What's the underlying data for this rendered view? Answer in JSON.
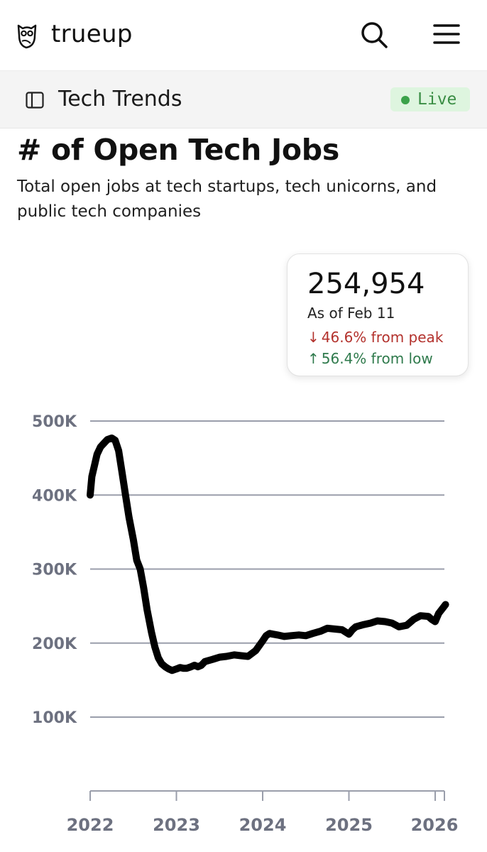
{
  "app": {
    "brand": "trueup",
    "icons": {
      "logo": "owl-logo-icon",
      "search": "search-icon",
      "menu": "hamburger-menu-icon",
      "panel": "sidebar-panel-icon"
    }
  },
  "section": {
    "title": "Tech Trends",
    "live_label": "Live",
    "live_color": "#3ba24a"
  },
  "page": {
    "title": "# of Open Tech Jobs",
    "subtitle": "Total open jobs at tech startups, tech unicorns, and public tech companies"
  },
  "stat": {
    "value": "254,954",
    "date": "As of Feb 11",
    "peak_change": "46.6% from peak",
    "low_change": "56.4% from low",
    "down_color": "#b3322d",
    "up_color": "#2f7a4c"
  },
  "chart_data": {
    "type": "line",
    "title": "",
    "xlabel": "",
    "ylabel": "",
    "ylim": [
      0,
      500000
    ],
    "xlim": [
      2022.0,
      2026.12
    ],
    "grid": true,
    "y_ticks": [
      100000,
      200000,
      300000,
      400000,
      500000
    ],
    "y_tick_labels": [
      "100K",
      "200K",
      "300K",
      "400K",
      "500K"
    ],
    "x_ticks": [
      2022,
      2023,
      2024,
      2025,
      2026
    ],
    "x_tick_labels": [
      "2022",
      "2023",
      "2024",
      "2025",
      "2026"
    ],
    "line_color": "#000000",
    "series": [
      {
        "x": [
          2022.0,
          2022.02,
          2022.05,
          2022.08,
          2022.12,
          2022.16,
          2022.2,
          2022.25,
          2022.29,
          2022.33,
          2022.37,
          2022.41,
          2022.45,
          2022.5,
          2022.54,
          2022.58,
          2022.62,
          2022.66,
          2022.71,
          2022.75,
          2022.79,
          2022.83,
          2022.87,
          2022.91,
          2022.95,
          2023.0,
          2023.04,
          2023.08,
          2023.12,
          2023.17,
          2023.21,
          2023.25,
          2023.29,
          2023.33,
          2023.42,
          2023.5,
          2023.58,
          2023.67,
          2023.75,
          2023.83,
          2023.92,
          2024.0,
          2024.04,
          2024.08,
          2024.12,
          2024.17,
          2024.25,
          2024.33,
          2024.42,
          2024.5,
          2024.58,
          2024.67,
          2024.75,
          2024.83,
          2024.92,
          2025.0,
          2025.04,
          2025.08,
          2025.17,
          2025.25,
          2025.33,
          2025.42,
          2025.5,
          2025.58,
          2025.67,
          2025.75,
          2025.83,
          2025.92,
          2025.96,
          2026.0,
          2026.04,
          2026.08,
          2026.12
        ],
        "y": [
          400000,
          425000,
          440000,
          455000,
          465000,
          470000,
          475000,
          477000,
          474000,
          460000,
          430000,
          400000,
          370000,
          340000,
          312000,
          300000,
          275000,
          245000,
          215000,
          195000,
          180000,
          172000,
          168000,
          165000,
          163000,
          165000,
          167000,
          166000,
          166000,
          168000,
          170000,
          168000,
          170000,
          175000,
          178000,
          181000,
          182000,
          184000,
          183000,
          182000,
          190000,
          203000,
          210000,
          213000,
          212000,
          211000,
          209000,
          210000,
          211000,
          210000,
          213000,
          216000,
          220000,
          219000,
          218000,
          212000,
          218000,
          222000,
          225000,
          227000,
          230000,
          229000,
          227000,
          222000,
          224000,
          232000,
          237000,
          236000,
          232000,
          229000,
          240000,
          246000,
          252000
        ]
      }
    ]
  }
}
